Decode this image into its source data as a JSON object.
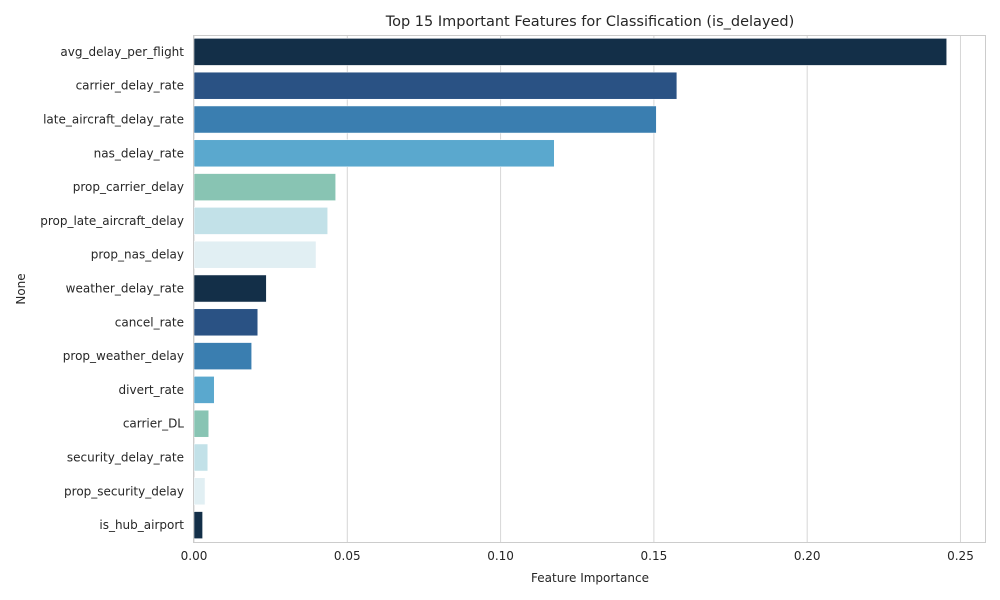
{
  "chart_data": {
    "type": "bar",
    "orientation": "horizontal",
    "title": "Top 15 Important Features for Classification (is_delayed)",
    "xlabel": "Feature Importance",
    "ylabel": "None",
    "xlim": [
      0,
      0.258
    ],
    "xticks": [
      0.0,
      0.05,
      0.1,
      0.15,
      0.2,
      0.25
    ],
    "xtick_labels": [
      "0.00",
      "0.05",
      "0.10",
      "0.15",
      "0.20",
      "0.25"
    ],
    "grid": "vertical",
    "legend": "none",
    "categories": [
      "avg_delay_per_flight",
      "carrier_delay_rate",
      "late_aircraft_delay_rate",
      "nas_delay_rate",
      "prop_carrier_delay",
      "prop_late_aircraft_delay",
      "prop_nas_delay",
      "weather_delay_rate",
      "cancel_rate",
      "prop_weather_delay",
      "divert_rate",
      "carrier_DL",
      "security_delay_rate",
      "prop_security_delay",
      "is_hub_airport"
    ],
    "values": [
      0.2455,
      0.1575,
      0.1508,
      0.1175,
      0.0462,
      0.0436,
      0.0398,
      0.0236,
      0.0208,
      0.0188,
      0.0066,
      0.0048,
      0.0045,
      0.0036,
      0.0028
    ],
    "colors": [
      "#132f48",
      "#2a5284",
      "#3a7eb0",
      "#5aa8ce",
      "#88c4b3",
      "#c2e1e8",
      "#e1eff3",
      "#132f48",
      "#2a5284",
      "#3a7eb0",
      "#5aa8ce",
      "#88c4b3",
      "#c2e1e8",
      "#e1eff3",
      "#132f48"
    ]
  }
}
